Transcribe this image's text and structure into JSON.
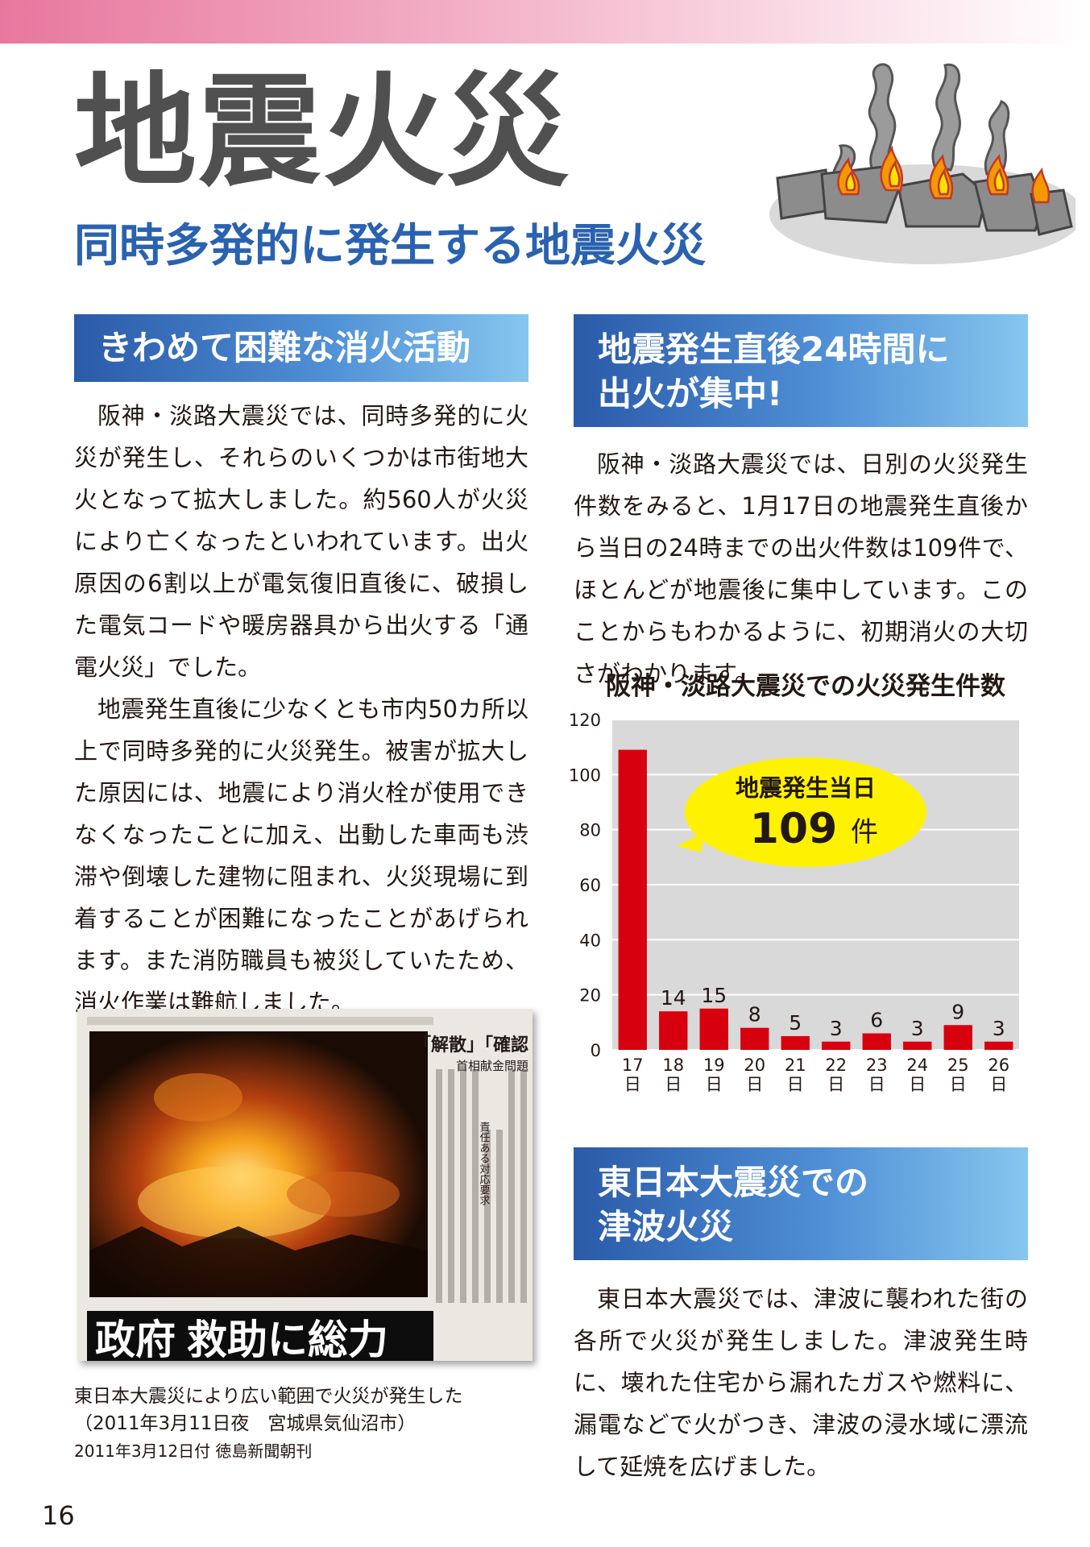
{
  "page": {
    "title": "地震火災",
    "subtitle": "同時多発的に発生する地震火災",
    "page_number": "16"
  },
  "section1": {
    "heading": "きわめて困難な消火活動",
    "paragraphs": [
      "阪神・淡路大震災では、同時多発的に火災が発生し、それらのいくつかは市街地大火となって拡大しました。約560人が火災により亡くなったといわれています。出火原因の6割以上が電気復旧直後に、破損した電気コードや暖房器具から出火する「通電火災」でした。",
      "地震発生直後に少なくとも市内50カ所以上で同時多発的に火災発生。被害が拡大した原因には、地震により消火栓が使用できなくなったことに加え、出動した車両も渋滞や倒壊した建物に阻まれ、火災現場に到着することが困難になったことがあげられます。また消防職員も被災していたため、消火作業は難航しました。"
    ]
  },
  "photo": {
    "newspaper_headline": "政府 救助に総力",
    "side_headline_1": "「解散」「確認",
    "side_headline_2": "首相献金問題",
    "side_headline_3": "責任ある対応要求",
    "caption_line1": "東日本大震災により広い範囲で火災が発生した",
    "caption_line2": "（2011年3月11日夜　宮城県気仙沼市）",
    "caption_line3": "2011年3月12日付 徳島新聞朝刊"
  },
  "section2": {
    "heading": "地震発生直後24時間に\n出火が集中!",
    "paragraph": "阪神・淡路大震災では、日別の火災発生件数をみると、1月17日の地震発生直後から当日の24時までの出火件数は109件で、ほとんどが地震後に集中しています。このことからもわかるように、初期消火の大切さがわかります。"
  },
  "chart_data": {
    "type": "bar",
    "title": "阪神・淡路大震災での火災発生件数",
    "categories": [
      "17日",
      "18日",
      "19日",
      "20日",
      "21日",
      "22日",
      "23日",
      "24日",
      "25日",
      "26日"
    ],
    "values": [
      109,
      14,
      15,
      8,
      5,
      3,
      6,
      3,
      9,
      3
    ],
    "data_labels": [
      "",
      "14",
      "15",
      "8",
      "5",
      "3",
      "6",
      "3",
      "9",
      "3"
    ],
    "ylim": [
      0,
      120
    ],
    "yticks": [
      0,
      20,
      40,
      60,
      80,
      100,
      120
    ],
    "grid": true,
    "bar_color": "#d7000f",
    "plot_background": "#d9d9d9",
    "callout": {
      "line1": "地震発生当日",
      "value": "109",
      "unit": "件",
      "background": "#fff200"
    }
  },
  "section3": {
    "heading": "東日本大震災での\n津波火災",
    "paragraph": "東日本大震災では、津波に襲われた街の各所で火災が発生しました。津波発生時に、壊れた住宅から漏れたガスや燃料に、漏電などで火がつき、津波の浸水域に漂流して延焼を広げました。"
  },
  "colors": {
    "title_gray": "#505050",
    "subtitle_blue": "#2a62b0",
    "heading_gradient_start": "#2a5aa8",
    "heading_gradient_end": "#86c6ee",
    "top_band_pink": "#e8779e"
  }
}
